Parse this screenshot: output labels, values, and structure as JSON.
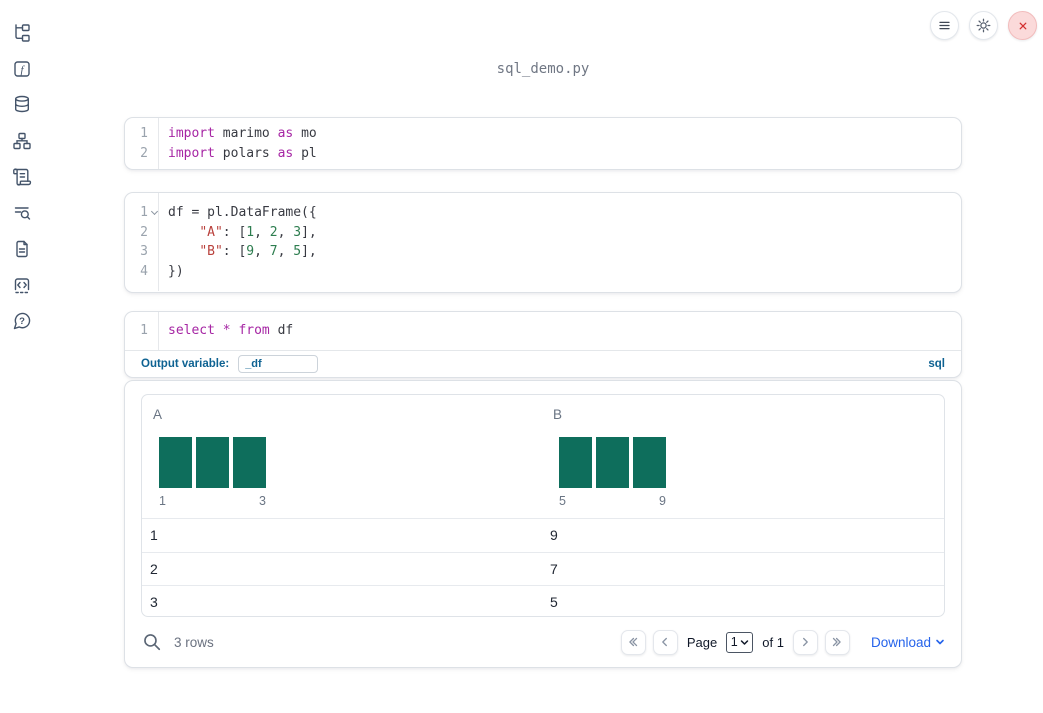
{
  "app": {
    "title": "sql_demo.py"
  },
  "toolbar": {
    "buttons": [
      "menu",
      "settings",
      "shutdown"
    ]
  },
  "sidebar": {
    "items": [
      "file-explorer",
      "variables",
      "data-sources",
      "dependency-graph",
      "scratchpad",
      "logs",
      "documentation",
      "snippets",
      "help"
    ]
  },
  "cells": [
    {
      "name": "imports-cell",
      "lines": [
        {
          "num": "1",
          "tokens": [
            [
              "kw",
              "import"
            ],
            [
              "pl",
              " marimo "
            ],
            [
              "kw",
              "as"
            ],
            [
              "pl",
              " mo"
            ]
          ]
        },
        {
          "num": "2",
          "tokens": [
            [
              "kw",
              "import"
            ],
            [
              "pl",
              " polars "
            ],
            [
              "kw",
              "as"
            ],
            [
              "pl",
              " pl"
            ]
          ]
        }
      ]
    },
    {
      "name": "dataframe-cell",
      "lines": [
        {
          "num": "1",
          "fold": true,
          "tokens": [
            [
              "pl",
              "df = pl.DataFrame({"
            ]
          ]
        },
        {
          "num": "2",
          "tokens": [
            [
              "pl",
              "    "
            ],
            [
              "str",
              "\"A\""
            ],
            [
              "pl",
              ": ["
            ],
            [
              "num",
              "1"
            ],
            [
              "pl",
              ", "
            ],
            [
              "num",
              "2"
            ],
            [
              "pl",
              ", "
            ],
            [
              "num",
              "3"
            ],
            [
              "pl",
              "],"
            ]
          ]
        },
        {
          "num": "3",
          "tokens": [
            [
              "pl",
              "    "
            ],
            [
              "str",
              "\"B\""
            ],
            [
              "pl",
              ": ["
            ],
            [
              "num",
              "9"
            ],
            [
              "pl",
              ", "
            ],
            [
              "num",
              "7"
            ],
            [
              "pl",
              ", "
            ],
            [
              "num",
              "5"
            ],
            [
              "pl",
              "],"
            ]
          ]
        },
        {
          "num": "4",
          "tokens": [
            [
              "pl",
              "})"
            ]
          ]
        }
      ]
    },
    {
      "name": "sql-cell",
      "lines": [
        {
          "num": "1",
          "tokens": [
            [
              "kw",
              "select"
            ],
            [
              "pl",
              " "
            ],
            [
              "kw",
              "*"
            ],
            [
              "pl",
              " "
            ],
            [
              "kw",
              "from"
            ],
            [
              "pl",
              " df"
            ]
          ]
        }
      ],
      "output_variable_label": "Output variable:",
      "output_variable_value": "_df",
      "language_badge": "sql"
    }
  ],
  "output": {
    "table": {
      "columns": [
        {
          "name": "A",
          "histogram": {
            "bars": [
              1,
              1,
              1
            ],
            "min_label": "1",
            "max_label": "3"
          }
        },
        {
          "name": "B",
          "histogram": {
            "bars": [
              1,
              1,
              1
            ],
            "min_label": "5",
            "max_label": "9"
          }
        }
      ],
      "rows": [
        [
          "1",
          "9"
        ],
        [
          "2",
          "7"
        ],
        [
          "3",
          "5"
        ]
      ],
      "footer": {
        "row_count": "3 rows",
        "page_label": "Page",
        "page_value": "1",
        "of_label": "of 1",
        "download_label": "Download"
      }
    }
  },
  "colors": {
    "histogram_bar": "#0e6e5c",
    "keyword": "#a626a4",
    "string": "#b9413c",
    "number": "#2d7d4f",
    "sql_accent_blue": "#0e6292",
    "download_blue": "#2563eb",
    "close_red": "#d33030"
  }
}
